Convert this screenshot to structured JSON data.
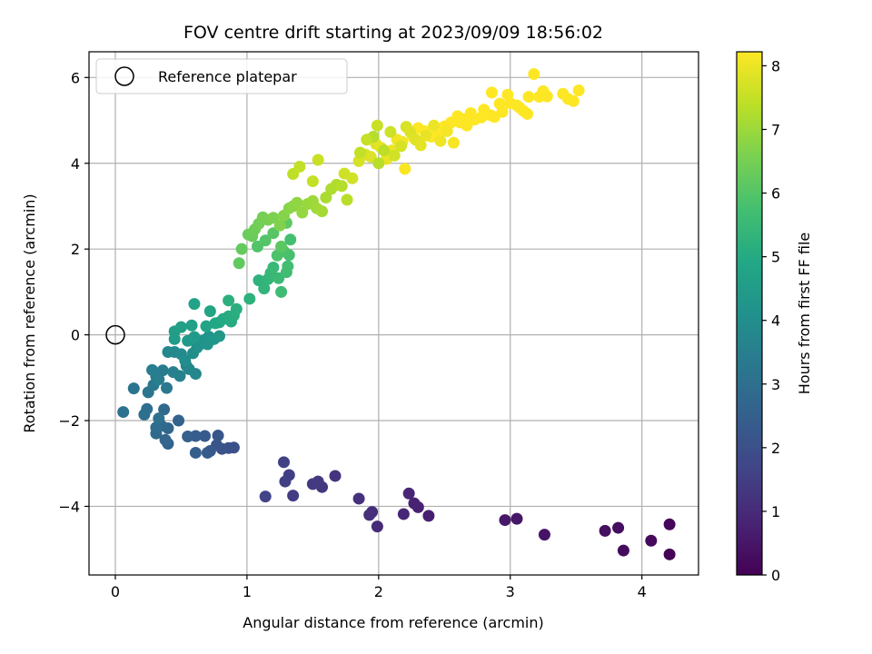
{
  "chart_data": {
    "type": "scatter",
    "title": "FOV centre drift starting at 2023/09/09 18:56:02",
    "xlabel": "Angular distance from reference (arcmin)",
    "ylabel": "Rotation from reference (arcmin)",
    "xlim": [
      -0.2,
      4.43
    ],
    "ylim": [
      -5.6,
      6.6
    ],
    "x_ticks": [
      0,
      1,
      2,
      3,
      4
    ],
    "y_ticks": [
      -4,
      -2,
      0,
      2,
      4,
      6
    ],
    "grid": true,
    "legend": {
      "position": "top-left",
      "entries": [
        "Reference platepar"
      ]
    },
    "reference_point": {
      "x": 0,
      "y": 0,
      "label": "Reference platepar"
    },
    "colorbar": {
      "label": "Hours from first FF file",
      "colormap": "viridis",
      "range": [
        0,
        8.22
      ],
      "ticks": [
        0,
        1,
        2,
        3,
        4,
        5,
        6,
        7,
        8
      ]
    },
    "series": [
      {
        "points": [
          [
            4.21,
            -5.12,
            0.1
          ],
          [
            4.21,
            -4.42,
            0.15
          ],
          [
            4.07,
            -4.8,
            0.2
          ],
          [
            3.86,
            -5.03,
            0.25
          ],
          [
            3.82,
            -4.5,
            0.3
          ],
          [
            3.72,
            -4.57,
            0.35
          ],
          [
            3.26,
            -4.66,
            0.45
          ],
          [
            3.05,
            -4.29,
            0.5
          ],
          [
            2.96,
            -4.32,
            0.55
          ],
          [
            2.38,
            -4.22,
            0.7
          ],
          [
            2.3,
            -4.02,
            0.75
          ],
          [
            2.27,
            -3.93,
            0.8
          ],
          [
            2.23,
            -3.7,
            0.85
          ],
          [
            2.19,
            -4.18,
            0.9
          ],
          [
            1.99,
            -4.47,
            1.0
          ],
          [
            1.95,
            -4.13,
            1.05
          ],
          [
            1.93,
            -4.2,
            1.1
          ],
          [
            1.85,
            -3.82,
            1.15
          ],
          [
            1.67,
            -3.29,
            1.25
          ],
          [
            1.57,
            -3.55,
            1.3
          ],
          [
            1.54,
            -3.42,
            1.35
          ],
          [
            1.5,
            -3.48,
            1.4
          ],
          [
            1.35,
            -3.75,
            1.45
          ],
          [
            1.32,
            -3.27,
            1.5
          ],
          [
            1.29,
            -3.42,
            1.55
          ],
          [
            1.28,
            -2.97,
            1.6
          ],
          [
            1.14,
            -3.77,
            1.65
          ],
          [
            0.9,
            -2.63,
            2.0
          ],
          [
            0.86,
            -2.64,
            2.05
          ],
          [
            0.81,
            -2.66,
            2.1
          ],
          [
            0.77,
            -2.57,
            2.15
          ],
          [
            0.78,
            -2.35,
            2.2
          ],
          [
            0.72,
            -2.71,
            2.25
          ],
          [
            0.7,
            -2.75,
            2.3
          ],
          [
            0.68,
            -2.36,
            2.35
          ],
          [
            0.61,
            -2.36,
            2.4
          ],
          [
            0.61,
            -2.75,
            2.45
          ],
          [
            0.55,
            -2.37,
            2.5
          ],
          [
            0.48,
            -2.0,
            2.55
          ],
          [
            0.4,
            -2.54,
            2.6
          ],
          [
            0.38,
            -2.45,
            2.65
          ],
          [
            0.4,
            -2.18,
            2.7
          ],
          [
            0.35,
            -2.12,
            2.75
          ],
          [
            0.37,
            -1.74,
            2.8
          ],
          [
            0.31,
            -2.3,
            2.85
          ],
          [
            0.31,
            -2.16,
            2.9
          ],
          [
            0.24,
            -1.73,
            2.95
          ],
          [
            0.22,
            -1.86,
            3.0
          ],
          [
            0.33,
            -1.95,
            3.05
          ],
          [
            0.06,
            -1.8,
            3.1
          ],
          [
            0.14,
            -1.25,
            3.15
          ],
          [
            0.25,
            -1.34,
            3.2
          ],
          [
            0.39,
            -1.24,
            3.25
          ],
          [
            0.29,
            -1.17,
            3.3
          ],
          [
            0.31,
            -0.97,
            3.35
          ],
          [
            0.36,
            -0.83,
            3.4
          ],
          [
            0.28,
            -0.82,
            3.45
          ],
          [
            0.33,
            -1.04,
            3.5
          ],
          [
            0.44,
            -0.87,
            3.55
          ],
          [
            0.49,
            -0.96,
            3.6
          ],
          [
            0.54,
            -0.72,
            3.65
          ],
          [
            0.56,
            -0.8,
            3.7
          ],
          [
            0.61,
            -0.91,
            3.75
          ],
          [
            0.4,
            -0.4,
            3.8
          ],
          [
            0.45,
            -0.4,
            3.85
          ],
          [
            0.5,
            -0.45,
            3.9
          ],
          [
            0.53,
            -0.6,
            3.95
          ],
          [
            0.59,
            -0.43,
            4.0
          ],
          [
            0.62,
            -0.3,
            4.05
          ],
          [
            0.64,
            -0.23,
            4.1
          ],
          [
            0.67,
            -0.13,
            4.15
          ],
          [
            0.7,
            -0.22,
            4.2
          ],
          [
            0.71,
            -0.04,
            4.25
          ],
          [
            0.75,
            -0.1,
            4.3
          ],
          [
            0.79,
            -0.03,
            4.35
          ],
          [
            0.55,
            -0.14,
            4.4
          ],
          [
            0.6,
            -0.05,
            4.45
          ],
          [
            0.45,
            -0.1,
            4.5
          ],
          [
            0.45,
            0.08,
            4.55
          ],
          [
            0.5,
            0.18,
            4.6
          ],
          [
            0.58,
            0.22,
            4.65
          ],
          [
            0.6,
            0.72,
            4.7
          ],
          [
            0.69,
            0.2,
            4.75
          ],
          [
            0.72,
            0.55,
            4.8
          ],
          [
            0.76,
            0.27,
            4.85
          ],
          [
            0.79,
            0.29,
            4.9
          ],
          [
            0.82,
            0.37,
            4.95
          ],
          [
            0.86,
            0.43,
            5.0
          ],
          [
            0.88,
            0.31,
            5.05
          ],
          [
            0.9,
            0.45,
            5.1
          ],
          [
            0.92,
            0.6,
            5.15
          ],
          [
            0.86,
            0.8,
            5.2
          ],
          [
            1.02,
            0.84,
            5.25
          ],
          [
            1.09,
            1.27,
            5.3
          ],
          [
            1.13,
            1.08,
            5.35
          ],
          [
            1.16,
            1.3,
            5.4
          ],
          [
            1.18,
            1.44,
            5.45
          ],
          [
            1.2,
            1.57,
            5.5
          ],
          [
            1.24,
            1.32,
            5.55
          ],
          [
            1.26,
            1.0,
            5.6
          ],
          [
            1.3,
            1.46,
            5.65
          ],
          [
            1.31,
            1.6,
            5.7
          ],
          [
            1.33,
            2.22,
            5.75
          ],
          [
            1.32,
            1.86,
            5.8
          ],
          [
            1.28,
            1.95,
            5.85
          ],
          [
            1.23,
            1.85,
            5.9
          ],
          [
            1.08,
            2.06,
            5.95
          ],
          [
            1.14,
            2.2,
            6.0
          ],
          [
            1.2,
            2.37,
            6.05
          ],
          [
            1.26,
            2.06,
            6.1
          ],
          [
            1.3,
            2.61,
            6.15
          ],
          [
            0.94,
            1.67,
            6.2
          ],
          [
            0.96,
            2.0,
            6.25
          ],
          [
            1.04,
            2.3,
            6.3
          ],
          [
            1.01,
            2.34,
            6.35
          ],
          [
            1.06,
            2.46,
            6.4
          ],
          [
            1.09,
            2.59,
            6.45
          ],
          [
            1.12,
            2.74,
            6.5
          ],
          [
            1.16,
            2.68,
            6.55
          ],
          [
            1.2,
            2.73,
            6.6
          ],
          [
            1.25,
            2.55,
            6.65
          ],
          [
            1.28,
            2.78,
            6.7
          ],
          [
            1.32,
            2.95,
            6.75
          ],
          [
            1.35,
            3.0,
            6.8
          ],
          [
            1.38,
            3.08,
            6.85
          ],
          [
            1.42,
            2.85,
            6.9
          ],
          [
            1.46,
            3.05,
            6.95
          ],
          [
            1.5,
            3.12,
            7.0
          ],
          [
            1.53,
            2.95,
            7.05
          ],
          [
            1.57,
            2.88,
            7.1
          ],
          [
            1.6,
            3.2,
            7.15
          ],
          [
            1.64,
            3.4,
            7.2
          ],
          [
            1.68,
            3.5,
            7.25
          ],
          [
            1.72,
            3.47,
            7.3
          ],
          [
            1.76,
            3.15,
            7.35
          ],
          [
            1.35,
            3.75,
            7.4
          ],
          [
            1.4,
            3.92,
            7.45
          ],
          [
            1.5,
            3.58,
            7.5
          ],
          [
            1.54,
            4.08,
            7.55
          ],
          [
            1.74,
            3.76,
            7.6
          ],
          [
            1.8,
            3.65,
            7.65
          ],
          [
            1.85,
            4.05,
            7.7
          ],
          [
            1.9,
            4.2,
            7.75
          ],
          [
            1.94,
            4.15,
            7.8
          ],
          [
            1.98,
            4.45,
            7.85
          ],
          [
            2.02,
            4.36,
            7.9
          ],
          [
            2.06,
            4.1,
            7.95
          ],
          [
            2.1,
            4.3,
            8.0
          ],
          [
            2.14,
            4.55,
            8.05
          ],
          [
            2.18,
            4.5,
            8.1
          ],
          [
            2.2,
            3.87,
            8.15
          ],
          [
            2.26,
            4.62,
            8.2
          ],
          [
            2.3,
            4.82,
            8.25
          ],
          [
            2.35,
            4.75,
            8.3
          ],
          [
            2.4,
            4.62,
            8.35
          ],
          [
            2.45,
            4.66,
            8.4
          ],
          [
            2.5,
            4.86,
            8.45
          ],
          [
            2.55,
            4.95,
            8.5
          ],
          [
            2.6,
            5.1,
            8.55
          ],
          [
            2.65,
            5.03,
            8.6
          ],
          [
            2.7,
            5.17,
            8.65
          ],
          [
            2.78,
            5.07,
            8.7
          ],
          [
            2.85,
            5.12,
            8.75
          ],
          [
            2.92,
            5.39,
            8.8
          ],
          [
            2.98,
            5.6,
            8.85
          ],
          [
            3.05,
            5.35,
            8.9
          ],
          [
            3.1,
            5.22,
            8.95
          ],
          [
            3.14,
            5.55,
            9.0
          ],
          [
            3.18,
            6.08,
            9.05
          ],
          [
            3.25,
            5.68,
            9.1
          ],
          [
            3.28,
            5.56,
            9.15
          ],
          [
            3.4,
            5.62,
            9.2
          ],
          [
            3.44,
            5.5,
            9.25
          ],
          [
            3.48,
            5.45,
            9.3
          ],
          [
            3.52,
            5.7,
            9.35
          ],
          [
            1.96,
            4.62,
            7.3
          ],
          [
            2.0,
            4.0,
            7.35
          ],
          [
            2.04,
            4.3,
            7.4
          ],
          [
            1.86,
            4.25,
            7.45
          ],
          [
            1.91,
            4.55,
            7.5
          ],
          [
            1.99,
            4.88,
            7.55
          ],
          [
            2.09,
            4.73,
            7.6
          ],
          [
            2.12,
            4.18,
            7.65
          ],
          [
            2.17,
            4.4,
            7.7
          ],
          [
            2.21,
            4.85,
            7.75
          ],
          [
            2.24,
            4.73,
            7.8
          ],
          [
            2.28,
            4.55,
            7.85
          ],
          [
            2.32,
            4.42,
            7.9
          ],
          [
            2.36,
            4.65,
            7.95
          ],
          [
            2.42,
            4.88,
            8.0
          ],
          [
            2.47,
            4.52,
            8.05
          ],
          [
            2.52,
            4.75,
            8.1
          ],
          [
            2.57,
            4.48,
            8.15
          ],
          [
            2.62,
            4.95,
            8.2
          ],
          [
            2.67,
            4.88,
            8.25
          ],
          [
            2.73,
            5.02,
            8.3
          ],
          [
            2.8,
            5.25,
            8.35
          ],
          [
            2.88,
            5.08,
            8.4
          ],
          [
            2.94,
            5.2,
            8.45
          ],
          [
            3.0,
            5.4,
            8.5
          ],
          [
            3.07,
            5.3,
            8.55
          ],
          [
            3.13,
            5.15,
            8.6
          ],
          [
            2.86,
            5.65,
            8.65
          ],
          [
            3.22,
            5.55,
            8.7
          ]
        ]
      }
    ]
  }
}
